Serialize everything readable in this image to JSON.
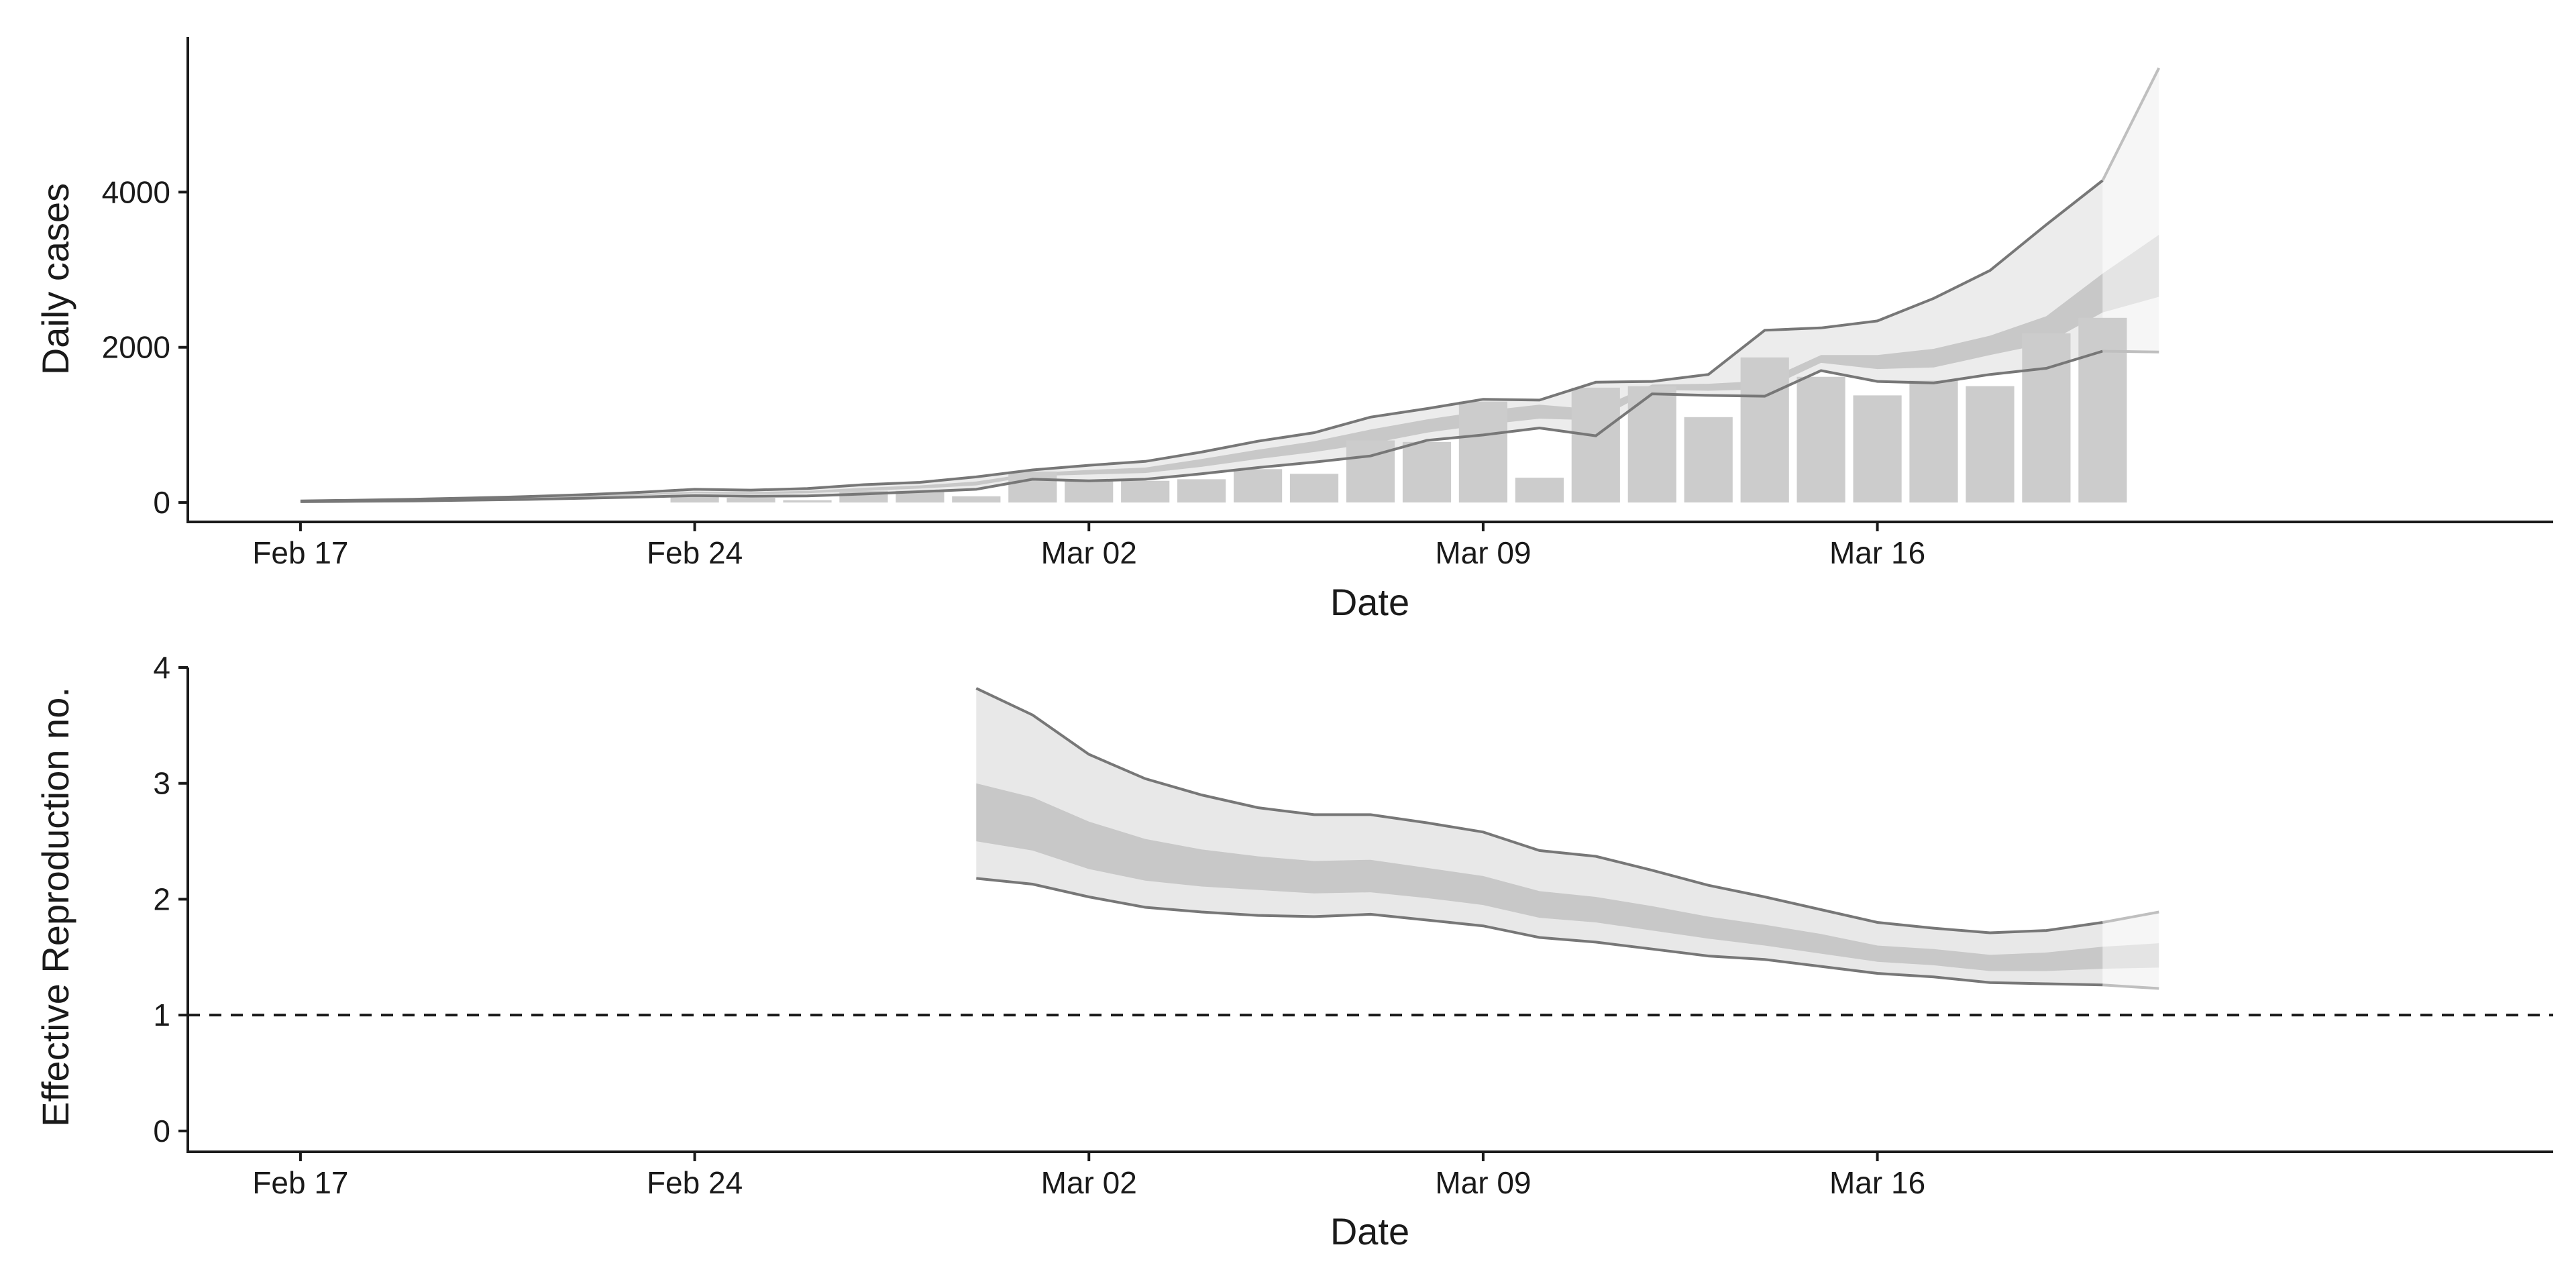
{
  "chart_data": [
    {
      "type": "bar",
      "xlabel": "Date",
      "ylabel": "Daily cases",
      "xlim": [
        "2020-02-15",
        "2020-03-28"
      ],
      "ylim": [
        -250,
        6000
      ],
      "xticks": [
        {
          "date": "2020-02-17",
          "label": "Feb 17"
        },
        {
          "date": "2020-02-24",
          "label": "Feb 24"
        },
        {
          "date": "2020-03-02",
          "label": "Mar 02"
        },
        {
          "date": "2020-03-09",
          "label": "Mar 09"
        },
        {
          "date": "2020-03-16",
          "label": "Mar 16"
        }
      ],
      "yticks": [
        {
          "value": 0,
          "label": "0"
        },
        {
          "value": 2000,
          "label": "2000"
        },
        {
          "value": 4000,
          "label": "4000"
        }
      ],
      "grid": false,
      "legend": "none",
      "colors": {
        "bars": "#cccccc",
        "band_inner": "#c8c8c8",
        "band_outer": "#ececec",
        "bound_line": "#777777",
        "forecast_line": "#bfbfbf",
        "axis": "#1a1a1a"
      },
      "bars": [
        {
          "date": "2020-02-24",
          "value": 100
        },
        {
          "date": "2020-02-25",
          "value": 60
        },
        {
          "date": "2020-02-26",
          "value": 30
        },
        {
          "date": "2020-02-27",
          "value": 150
        },
        {
          "date": "2020-02-28",
          "value": 150
        },
        {
          "date": "2020-02-29",
          "value": 80
        },
        {
          "date": "2020-03-01",
          "value": 400
        },
        {
          "date": "2020-03-02",
          "value": 280
        },
        {
          "date": "2020-03-03",
          "value": 280
        },
        {
          "date": "2020-03-04",
          "value": 300
        },
        {
          "date": "2020-03-05",
          "value": 430
        },
        {
          "date": "2020-03-06",
          "value": 370
        },
        {
          "date": "2020-03-07",
          "value": 800
        },
        {
          "date": "2020-03-08",
          "value": 780
        },
        {
          "date": "2020-03-09",
          "value": 1300
        },
        {
          "date": "2020-03-10",
          "value": 320
        },
        {
          "date": "2020-03-11",
          "value": 1480
        },
        {
          "date": "2020-03-12",
          "value": 1500
        },
        {
          "date": "2020-03-13",
          "value": 1100
        },
        {
          "date": "2020-03-14",
          "value": 1870
        },
        {
          "date": "2020-03-15",
          "value": 1620
        },
        {
          "date": "2020-03-16",
          "value": 1380
        },
        {
          "date": "2020-03-17",
          "value": 1570
        },
        {
          "date": "2020-03-18",
          "value": 1500
        },
        {
          "date": "2020-03-19",
          "value": 2180
        },
        {
          "date": "2020-03-20",
          "value": 2380
        }
      ],
      "bands": {
        "dates": [
          "2020-02-17",
          "2020-02-18",
          "2020-02-19",
          "2020-02-20",
          "2020-02-21",
          "2020-02-22",
          "2020-02-23",
          "2020-02-24",
          "2020-02-25",
          "2020-02-26",
          "2020-02-27",
          "2020-02-28",
          "2020-02-29",
          "2020-03-01",
          "2020-03-02",
          "2020-03-03",
          "2020-03-04",
          "2020-03-05",
          "2020-03-06",
          "2020-03-07",
          "2020-03-08",
          "2020-03-09",
          "2020-03-10",
          "2020-03-11",
          "2020-03-12",
          "2020-03-13",
          "2020-03-14",
          "2020-03-15",
          "2020-03-16",
          "2020-03-17",
          "2020-03-18",
          "2020-03-19",
          "2020-03-20",
          "2020-03-21"
        ],
        "lower90": [
          10,
          15,
          20,
          30,
          40,
          55,
          70,
          90,
          80,
          85,
          110,
          140,
          170,
          300,
          280,
          300,
          370,
          450,
          520,
          600,
          800,
          870,
          960,
          860,
          1400,
          1380,
          1370,
          1700,
          1560,
          1540,
          1650,
          1730,
          1950,
          1940
        ],
        "lower50": [
          12,
          18,
          24,
          36,
          50,
          70,
          90,
          120,
          110,
          120,
          150,
          180,
          220,
          340,
          360,
          380,
          460,
          560,
          650,
          760,
          900,
          1000,
          1080,
          1060,
          1450,
          1440,
          1460,
          1800,
          1720,
          1740,
          1900,
          2050,
          2450,
          2650
        ],
        "upper50": [
          15,
          22,
          30,
          45,
          62,
          85,
          110,
          140,
          135,
          150,
          190,
          220,
          270,
          380,
          420,
          450,
          560,
          680,
          790,
          940,
          1070,
          1180,
          1260,
          1200,
          1520,
          1530,
          1570,
          1900,
          1900,
          1980,
          2150,
          2400,
          2950,
          3450
        ],
        "upper90": [
          20,
          30,
          42,
          58,
          76,
          100,
          130,
          170,
          160,
          180,
          230,
          260,
          330,
          420,
          480,
          530,
          650,
          790,
          900,
          1100,
          1210,
          1330,
          1320,
          1550,
          1560,
          1650,
          2220,
          2250,
          2340,
          2630,
          2990,
          3580,
          4150,
          5600
        ],
        "forecast_from": "2020-03-20"
      }
    },
    {
      "type": "area",
      "xlabel": "Date",
      "ylabel": "Effective Reproduction no.",
      "xlim": [
        "2020-02-15",
        "2020-03-28"
      ],
      "ylim": [
        -0.18,
        4.0
      ],
      "xticks": [
        {
          "date": "2020-02-17",
          "label": "Feb 17"
        },
        {
          "date": "2020-02-24",
          "label": "Feb 24"
        },
        {
          "date": "2020-03-02",
          "label": "Mar 02"
        },
        {
          "date": "2020-03-09",
          "label": "Mar 09"
        },
        {
          "date": "2020-03-16",
          "label": "Mar 16"
        }
      ],
      "yticks": [
        {
          "value": 0,
          "label": "0"
        },
        {
          "value": 1,
          "label": "1"
        },
        {
          "value": 2,
          "label": "2"
        },
        {
          "value": 3,
          "label": "3"
        },
        {
          "value": 4,
          "label": "4"
        }
      ],
      "reference_line": {
        "value": 1,
        "style": "dashed"
      },
      "grid": false,
      "legend": "none",
      "colors": {
        "band_inner": "#c8c8c8",
        "band_outer": "#e8e8e8",
        "bound_line": "#777777",
        "forecast_line": "#bfbfbf",
        "reference": "#1a1a1a"
      },
      "bands": {
        "dates": [
          "2020-02-29",
          "2020-03-01",
          "2020-03-02",
          "2020-03-03",
          "2020-03-04",
          "2020-03-05",
          "2020-03-06",
          "2020-03-07",
          "2020-03-08",
          "2020-03-09",
          "2020-03-10",
          "2020-03-11",
          "2020-03-12",
          "2020-03-13",
          "2020-03-14",
          "2020-03-15",
          "2020-03-16",
          "2020-03-17",
          "2020-03-18",
          "2020-03-19",
          "2020-03-20",
          "2020-03-21"
        ],
        "lower90": [
          2.18,
          2.13,
          2.02,
          1.93,
          1.89,
          1.86,
          1.85,
          1.87,
          1.82,
          1.77,
          1.67,
          1.63,
          1.57,
          1.51,
          1.48,
          1.42,
          1.36,
          1.33,
          1.28,
          1.27,
          1.26,
          1.23
        ],
        "lower50": [
          2.5,
          2.42,
          2.26,
          2.16,
          2.11,
          2.08,
          2.05,
          2.06,
          2.01,
          1.95,
          1.84,
          1.8,
          1.73,
          1.66,
          1.6,
          1.53,
          1.46,
          1.43,
          1.38,
          1.38,
          1.4,
          1.41
        ],
        "upper50": [
          3.0,
          2.88,
          2.67,
          2.52,
          2.43,
          2.37,
          2.33,
          2.34,
          2.27,
          2.2,
          2.07,
          2.02,
          1.94,
          1.85,
          1.78,
          1.7,
          1.6,
          1.57,
          1.52,
          1.54,
          1.59,
          1.62
        ],
        "upper90": [
          3.82,
          3.59,
          3.25,
          3.04,
          2.9,
          2.79,
          2.73,
          2.73,
          2.66,
          2.58,
          2.42,
          2.37,
          2.25,
          2.12,
          2.02,
          1.91,
          1.8,
          1.75,
          1.71,
          1.73,
          1.8,
          1.89
        ],
        "forecast_from": "2020-03-20"
      }
    }
  ]
}
